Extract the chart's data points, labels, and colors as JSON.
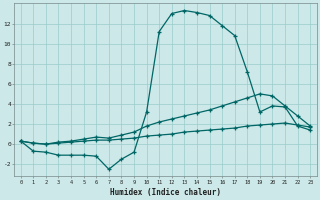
{
  "xlabel": "Humidex (Indice chaleur)",
  "bg_color": "#cce8e8",
  "line_color": "#006666",
  "grid_color": "#99cccc",
  "xlim": [
    -0.5,
    23.5
  ],
  "ylim": [
    -3.2,
    14.0
  ],
  "line1_x": [
    0,
    1,
    2,
    3,
    4,
    5,
    6,
    7,
    8,
    9,
    10,
    11,
    12,
    13,
    14,
    15,
    16,
    17,
    18,
    19,
    20,
    21,
    22,
    23
  ],
  "line1_y": [
    0.3,
    -0.7,
    -0.8,
    -1.1,
    -1.1,
    -1.1,
    -1.2,
    -2.5,
    -1.5,
    -0.8,
    3.2,
    11.2,
    13.0,
    13.3,
    13.1,
    12.8,
    11.8,
    10.8,
    7.2,
    3.2,
    3.8,
    3.7,
    1.8,
    1.4
  ],
  "line2_x": [
    0,
    1,
    2,
    3,
    4,
    5,
    6,
    7,
    8,
    9,
    10,
    11,
    12,
    13,
    14,
    15,
    16,
    17,
    18,
    19,
    20,
    21,
    22,
    23
  ],
  "line2_y": [
    0.3,
    0.1,
    0.0,
    0.1,
    0.2,
    0.3,
    0.4,
    0.4,
    0.5,
    0.6,
    0.8,
    0.9,
    1.0,
    1.2,
    1.3,
    1.4,
    1.5,
    1.6,
    1.8,
    1.9,
    2.0,
    2.1,
    1.9,
    1.7
  ],
  "line3_x": [
    0,
    1,
    2,
    3,
    4,
    5,
    6,
    7,
    8,
    9,
    10,
    11,
    12,
    13,
    14,
    15,
    16,
    17,
    18,
    19,
    20,
    21,
    22,
    23
  ],
  "line3_y": [
    0.3,
    0.1,
    0.0,
    0.2,
    0.3,
    0.5,
    0.7,
    0.6,
    0.9,
    1.2,
    1.8,
    2.2,
    2.5,
    2.8,
    3.1,
    3.4,
    3.8,
    4.2,
    4.6,
    5.0,
    4.8,
    3.8,
    2.8,
    1.8
  ]
}
